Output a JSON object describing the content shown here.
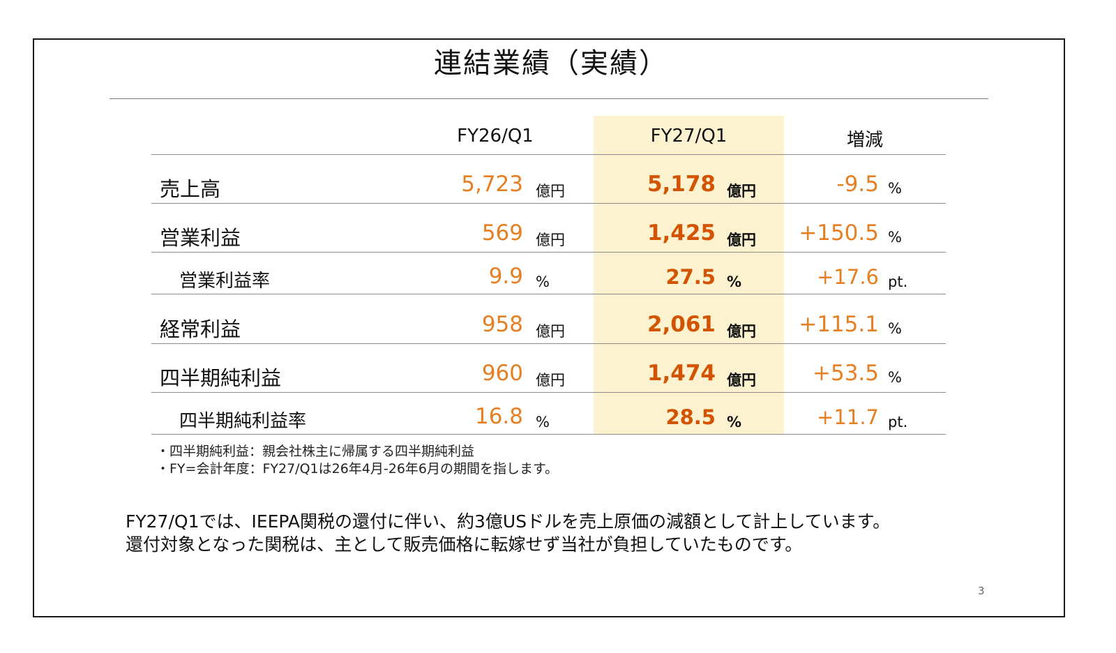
{
  "slide": {
    "title": "連結業績（実績）",
    "page_number": "3"
  },
  "table": {
    "headers": {
      "col1": "FY26/Q1",
      "col2": "FY27/Q1",
      "col3": "増減"
    },
    "rows": [
      {
        "label": "売上高",
        "v1": "5,723",
        "u1": "億円",
        "v2": "5,178",
        "u2": "億円",
        "v3": "-9.5",
        "u3": "%"
      },
      {
        "label": "営業利益",
        "v1": "569",
        "u1": "億円",
        "v2": "1,425",
        "u2": "億円",
        "v3": "+150.5",
        "u3": "%"
      },
      {
        "label": "営業利益率",
        "v1": "9.9",
        "u1": "%",
        "v2": "27.5",
        "u2": "%",
        "v3": "+17.6",
        "u3": "pt."
      },
      {
        "label": "経常利益",
        "v1": "958",
        "u1": "億円",
        "v2": "2,061",
        "u2": "億円",
        "v3": "+115.1",
        "u3": "%"
      },
      {
        "label": "四半期純利益",
        "v1": "960",
        "u1": "億円",
        "v2": "1,474",
        "u2": "億円",
        "v3": "+53.5",
        "u3": "%"
      },
      {
        "label": "四半期純利益率",
        "v1": "16.8",
        "u1": "%",
        "v2": "28.5",
        "u2": "%",
        "v3": "+11.7",
        "u3": "pt."
      }
    ]
  },
  "notes": [
    "・四半期純利益：親会社株主に帰属する四半期純利益",
    "・FY=会計年度：FY27/Q1は26年4月-26年6月の期間を指します。"
  ],
  "body_text": [
    "FY27/Q1では、IEEPA関税の還付に伴い、約3億USドルを売上原価の減額として計上しています。",
    "還付対象となった関税は、主として販売価格に転嫁せず当社が負担していたものです。"
  ],
  "colors": {
    "highlight_column": "#fdf2cf",
    "value_orange": "#e67e22",
    "value_dark_orange": "#d35400"
  }
}
